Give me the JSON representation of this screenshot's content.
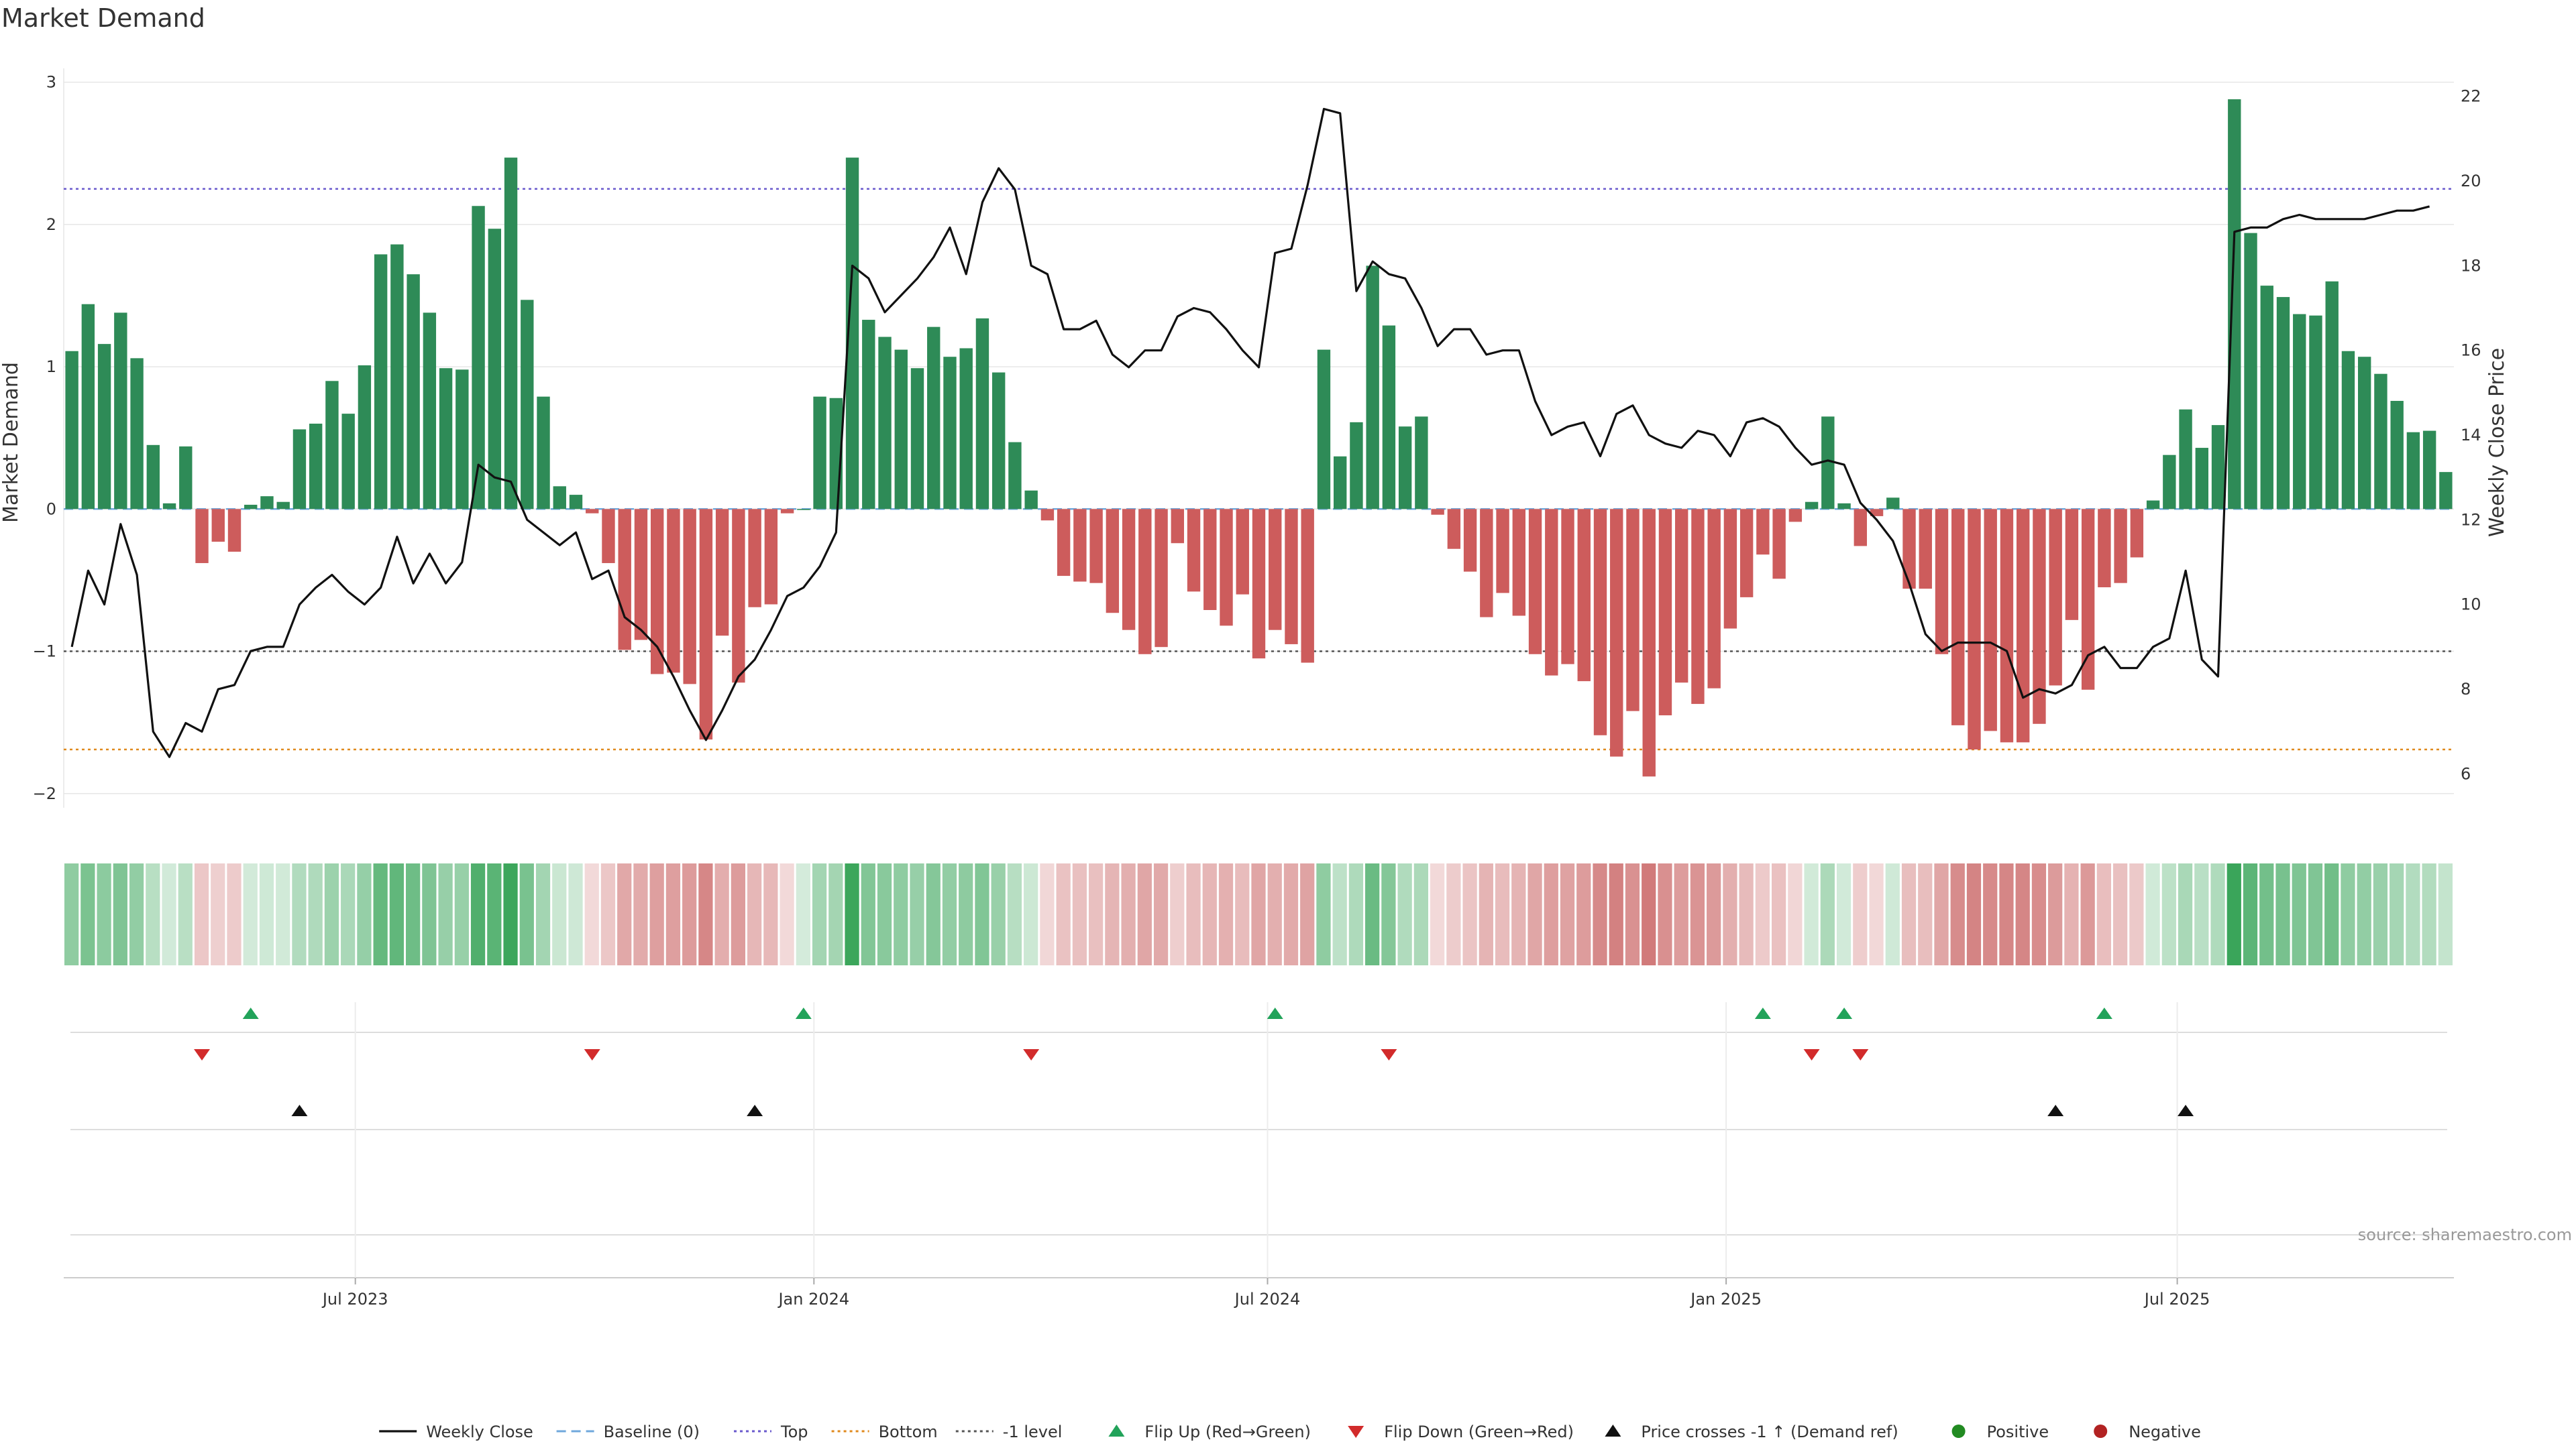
{
  "colors": {
    "positive": "#2e8b57",
    "negative": "#cd5c5c",
    "top_line": "#6a5acd",
    "bottom_line": "#e08a1e",
    "minus1_line": "#555555",
    "price_line": "#111111",
    "flip_up": "#22a35a",
    "flip_down": "#d22b2b",
    "price_cross": "#111111",
    "grid": "#e6e6e6"
  },
  "chart_data": {
    "type": "bar",
    "title": "Market Demand",
    "ylabel": "Market Demand",
    "y2label": "Weekly Close Price",
    "ylim": [
      -2.1,
      3.05
    ],
    "y2lim": [
      5.2,
      22.5
    ],
    "yticks": [
      3,
      2,
      1,
      0,
      -1,
      -2
    ],
    "ytick_labels": [
      "3",
      "2",
      "1",
      "0",
      "−1",
      "−2"
    ],
    "y2ticks": [
      22,
      20,
      18,
      16,
      14,
      12,
      10,
      8,
      6
    ],
    "y2tick_labels": [
      "22",
      "20",
      "18",
      "16",
      "14",
      "12",
      "10",
      "8",
      "6"
    ],
    "x_start": "2023-03-06",
    "x_end": "2025-10-20",
    "reference_lines": {
      "top": 2.25,
      "bottom": -1.69,
      "minus1": -1.0,
      "baseline": 0
    },
    "xticks": [
      {
        "label": "Jul 2023",
        "date": "2023-07-01"
      },
      {
        "label": "Jan 2024",
        "date": "2024-01-01"
      },
      {
        "label": "Jul 2024",
        "date": "2024-07-01"
      },
      {
        "label": "Jan 2025",
        "date": "2025-01-01"
      },
      {
        "label": "Jul 2025",
        "date": "2025-07-01"
      }
    ],
    "series": [
      {
        "name": "Market Demand",
        "kind": "bar",
        "values": [
          1.11,
          1.44,
          1.16,
          1.38,
          1.06,
          0.45,
          0.04,
          0.44,
          -0.38,
          -0.23,
          -0.3,
          0.03,
          0.09,
          0.05,
          0.56,
          0.6,
          0.9,
          0.67,
          1.01,
          1.79,
          1.86,
          1.65,
          1.38,
          0.99,
          0.98,
          2.13,
          1.97,
          2.47,
          1.47,
          0.79,
          0.16,
          0.1,
          -0.03,
          -0.38,
          -0.99,
          -0.92,
          -1.16,
          -1.15,
          -1.23,
          -1.62,
          -0.89,
          -1.22,
          -0.69,
          -0.67,
          -0.03,
          0.0,
          0.79,
          0.78,
          2.47,
          1.33,
          1.21,
          1.12,
          0.99,
          1.28,
          1.07,
          1.13,
          1.34,
          0.96,
          0.47,
          0.13,
          -0.08,
          -0.47,
          -0.51,
          -0.52,
          -0.73,
          -0.85,
          -1.02,
          -0.97,
          -0.24,
          -0.58,
          -0.71,
          -0.82,
          -0.6,
          -1.05,
          -0.85,
          -0.95,
          -1.08,
          1.12,
          0.37,
          0.61,
          1.71,
          1.29,
          0.58,
          0.65,
          -0.04,
          -0.28,
          -0.44,
          -0.76,
          -0.59,
          -0.75,
          -1.02,
          -1.17,
          -1.09,
          -1.21,
          -1.59,
          -1.74,
          -1.42,
          -1.88,
          -1.45,
          -1.22,
          -1.37,
          -1.26,
          -0.84,
          -0.62,
          -0.32,
          -0.49,
          -0.09,
          0.05,
          0.65,
          0.04,
          -0.26,
          -0.05,
          0.08,
          -0.56,
          -0.56,
          -1.02,
          -1.52,
          -1.69,
          -1.56,
          -1.64,
          -1.64,
          -1.51,
          -1.24,
          -0.78,
          -1.27,
          -0.55,
          -0.52,
          -0.34,
          0.06,
          0.38,
          0.7,
          0.43,
          0.59,
          2.88,
          1.94,
          1.57,
          1.49,
          1.37,
          1.36,
          1.6,
          1.11,
          1.07,
          0.95,
          0.76,
          0.54,
          0.55,
          0.26
        ]
      },
      {
        "name": "Weekly Close",
        "kind": "line",
        "axis": "right",
        "values": [
          9.0,
          10.8,
          10.0,
          11.9,
          10.7,
          7.0,
          6.4,
          7.2,
          7.0,
          8.0,
          8.1,
          8.9,
          9.0,
          9.0,
          10.0,
          10.4,
          10.7,
          10.3,
          10.0,
          10.4,
          11.6,
          10.5,
          11.2,
          10.5,
          11.0,
          13.3,
          13.0,
          12.9,
          12.0,
          11.7,
          11.4,
          11.7,
          10.6,
          10.8,
          9.7,
          9.4,
          9.0,
          8.3,
          7.5,
          6.8,
          7.5,
          8.3,
          8.7,
          9.4,
          10.2,
          10.4,
          10.9,
          11.7,
          18.0,
          17.7,
          16.9,
          17.3,
          17.7,
          18.2,
          18.9,
          17.8,
          19.5,
          20.3,
          19.8,
          18.0,
          17.8,
          16.5,
          16.5,
          16.7,
          15.9,
          15.6,
          16.0,
          16.0,
          16.8,
          17.0,
          16.9,
          16.5,
          16.0,
          15.6,
          18.3,
          18.4,
          19.9,
          21.7,
          21.6,
          17.4,
          18.1,
          17.8,
          17.7,
          17.0,
          16.1,
          16.5,
          16.5,
          15.9,
          16.0,
          16.0,
          14.8,
          14.0,
          14.2,
          14.3,
          13.5,
          14.5,
          14.7,
          14.0,
          13.8,
          13.7,
          14.1,
          14.0,
          13.5,
          14.3,
          14.4,
          14.2,
          13.7,
          13.3,
          13.4,
          13.3,
          12.4,
          12.0,
          11.5,
          10.5,
          9.3,
          8.9,
          9.1,
          9.1,
          9.1,
          8.9,
          7.8,
          8.0,
          7.9,
          8.1,
          8.8,
          9.0,
          8.5,
          8.5,
          9.0,
          9.2,
          10.8,
          8.7,
          8.3,
          18.8,
          18.9,
          18.9,
          19.1,
          19.2,
          19.1,
          19.1,
          19.1,
          19.1,
          19.2,
          19.3,
          19.3,
          19.4
        ]
      }
    ],
    "signals": {
      "flip_up_indices": [
        11,
        45,
        74,
        104,
        109,
        125
      ],
      "flip_down_indices": [
        8,
        32,
        59,
        81,
        107,
        110
      ],
      "price_cross_indices": [
        14,
        42,
        122,
        130
      ]
    }
  },
  "legend": {
    "items": [
      {
        "label": "Weekly Close",
        "kind": "line",
        "color_key": "price_line"
      },
      {
        "label": "Baseline (0)",
        "kind": "dashed",
        "color_key": "baseline"
      },
      {
        "label": "Top",
        "kind": "dotted",
        "color_key": "top_line"
      },
      {
        "label": "Bottom",
        "kind": "dotted",
        "color_key": "bottom_line"
      },
      {
        "label": "-1 level",
        "kind": "dotted",
        "color_key": "minus1_line"
      },
      {
        "label": "Flip Up (Red→Green)",
        "kind": "tri-up",
        "color_key": "flip_up"
      },
      {
        "label": "Flip Down (Green→Red)",
        "kind": "tri-down",
        "color_key": "flip_down"
      },
      {
        "label": "Price crosses -1 ↑ (Demand ref)",
        "kind": "tri-up",
        "color_key": "price_cross"
      },
      {
        "label": "Positive",
        "kind": "dot",
        "color_key": "positive_dot"
      },
      {
        "label": "Negative",
        "kind": "dot",
        "color_key": "negative_dot"
      }
    ]
  },
  "source": "source: sharemaestro.com"
}
